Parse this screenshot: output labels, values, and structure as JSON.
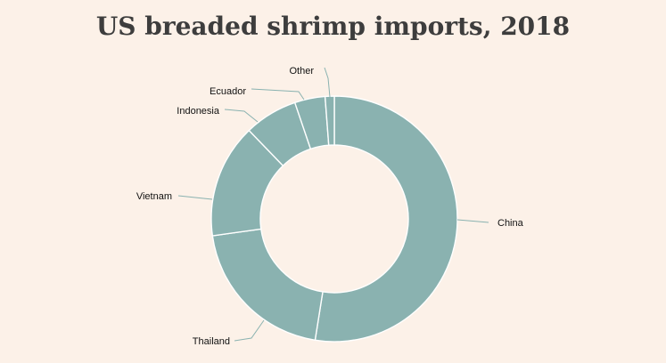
{
  "colors": {
    "background": "#fcf1e8",
    "slice": "#8ab2b0",
    "slice_stroke": "#ffffff",
    "leader": "#8ab2b0",
    "title": "#3d3d3d",
    "label": "#111111"
  },
  "chart_data": {
    "type": "pie",
    "variant": "donut",
    "title": "US breaded shrimp imports, 2018",
    "categories": [
      "China",
      "Thailand",
      "Vietnam",
      "Indonesia",
      "Ecuador",
      "Other"
    ],
    "values": [
      52.5,
      20.3,
      15.0,
      7.0,
      4.0,
      1.2
    ],
    "unit": "percent",
    "legend": "none",
    "labels": "outside with leader lines"
  }
}
